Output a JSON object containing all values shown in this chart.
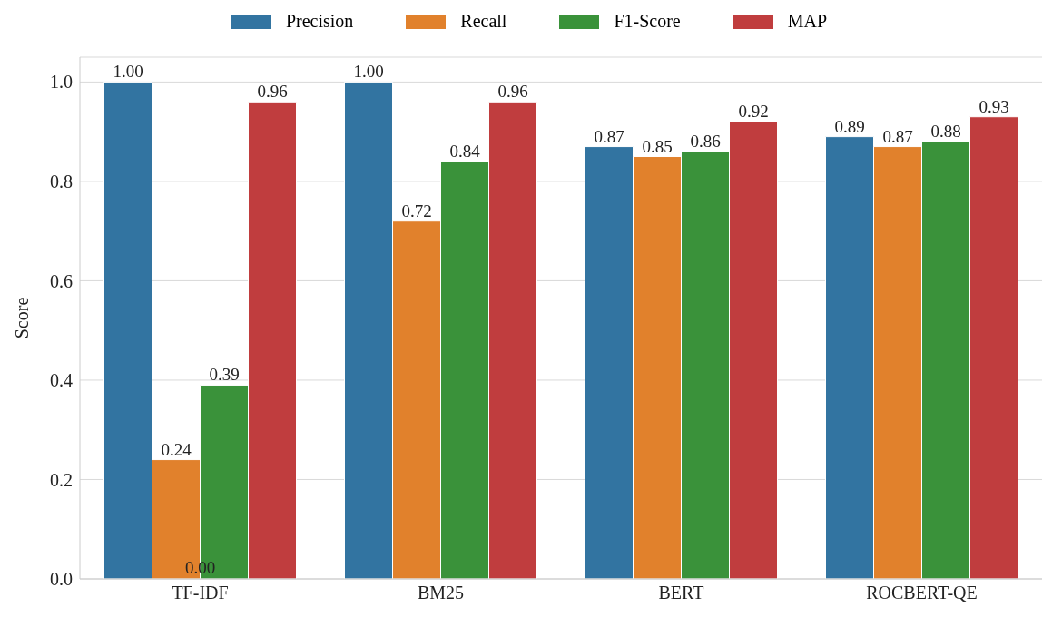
{
  "chart_data": {
    "type": "bar",
    "ylabel": "Score",
    "categories": [
      "TF-IDF",
      "BM25",
      "BERT",
      "ROCBERT-QE"
    ],
    "series": [
      {
        "name": "Precision",
        "color": "#3274a1",
        "values": [
          1.0,
          1.0,
          0.87,
          0.89
        ],
        "value_labels": [
          "1.00",
          "1.00",
          "0.87",
          "0.89"
        ]
      },
      {
        "name": "Recall",
        "color": "#e1812c",
        "values": [
          0.24,
          0.72,
          0.85,
          0.87
        ],
        "value_labels": [
          "0.24",
          "0.72",
          "0.85",
          "0.87"
        ]
      },
      {
        "name": "F1-Score",
        "color": "#3a923a",
        "values": [
          0.39,
          0.84,
          0.86,
          0.88
        ],
        "value_labels": [
          "0.39",
          "0.84",
          "0.86",
          "0.88"
        ]
      },
      {
        "name": "MAP",
        "color": "#c03d3e",
        "values": [
          0.96,
          0.96,
          0.92,
          0.93
        ],
        "value_labels": [
          "0.96",
          "0.96",
          "0.92",
          "0.93"
        ]
      }
    ],
    "ylim": [
      0,
      1.05
    ],
    "yticks": [
      {
        "value": 0,
        "label": "0.0"
      },
      {
        "value": 0.2,
        "label": "0.2"
      },
      {
        "value": 0.4,
        "label": "0.4"
      },
      {
        "value": 0.6,
        "label": "0.6"
      },
      {
        "value": 0.8,
        "label": "0.8"
      },
      {
        "value": 1.0,
        "label": "1.0"
      }
    ],
    "grid": "y",
    "legend": "top",
    "annotations": [
      {
        "text": "0.00",
        "x": "TF-IDF",
        "y": 0
      }
    ]
  }
}
